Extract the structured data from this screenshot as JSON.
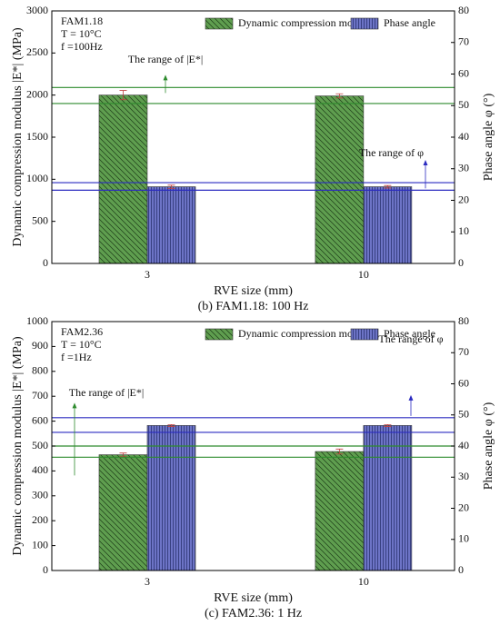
{
  "chart_data": [
    {
      "type": "bar",
      "categories": [
        "3",
        "10"
      ],
      "xlabel": "RVE size (mm)",
      "ylabel": "Dynamic compression modulus |E*| (MPa)",
      "y2label": "Phase angle φ (°)",
      "caption": "(b) FAM1.18: 100 Hz",
      "conditions": [
        "FAM1.18",
        "T = 10°C",
        "f =100Hz"
      ],
      "ylim": [
        0,
        3000
      ],
      "yticks": [
        0,
        500,
        1000,
        1500,
        2000,
        2500,
        3000
      ],
      "y2lim": [
        0,
        80
      ],
      "y2ticks": [
        0,
        10,
        20,
        30,
        40,
        50,
        60,
        70,
        80
      ],
      "series": [
        {
          "name": "Dynamic compression modulus",
          "color": "#5f9e4f",
          "axis": "y",
          "values": [
            2000,
            1990
          ],
          "errors": [
            55,
            25
          ]
        },
        {
          "name": "Phase angle",
          "color": "#6d74c6",
          "axis": "y2",
          "values": [
            24.3,
            24.3
          ],
          "errors": [
            0.5,
            0.4
          ]
        }
      ],
      "reference_lines": [
        {
          "axis": "y",
          "color": "#2e8b2e",
          "values": [
            2090,
            1900
          ],
          "label": "The range of |E*|"
        },
        {
          "axis": "y2",
          "color": "#2b2bc0",
          "values": [
            25.6,
            23.2
          ],
          "label": "The range of φ"
        }
      ]
    },
    {
      "type": "bar",
      "categories": [
        "3",
        "10"
      ],
      "xlabel": "RVE size (mm)",
      "ylabel": "Dynamic compression modulus |E*| (MPa)",
      "y2label": "Phase angle φ (°)",
      "caption": "(c) FAM2.36: 1 Hz",
      "conditions": [
        "FAM2.36",
        "T = 10°C",
        "f =1Hz"
      ],
      "ylim": [
        0,
        1000
      ],
      "yticks": [
        0,
        100,
        200,
        300,
        400,
        500,
        600,
        700,
        800,
        900,
        1000
      ],
      "y2lim": [
        0,
        80
      ],
      "y2ticks": [
        0,
        10,
        20,
        30,
        40,
        50,
        60,
        70,
        80
      ],
      "series": [
        {
          "name": "Dynamic compression modulus",
          "color": "#5f9e4f",
          "axis": "y",
          "values": [
            465,
            478
          ],
          "errors": [
            7,
            10
          ]
        },
        {
          "name": "Phase angle",
          "color": "#6d74c6",
          "axis": "y2",
          "values": [
            46.6,
            46.6
          ],
          "errors": [
            0.3,
            0.3
          ]
        }
      ],
      "reference_lines": [
        {
          "axis": "y",
          "color": "#2e8b2e",
          "values": [
            500,
            455
          ],
          "label": "The range of |E*|"
        },
        {
          "axis": "y2",
          "color": "#2b2bc0",
          "values": [
            49.1,
            44.4
          ],
          "label": "The range of φ"
        }
      ]
    }
  ]
}
